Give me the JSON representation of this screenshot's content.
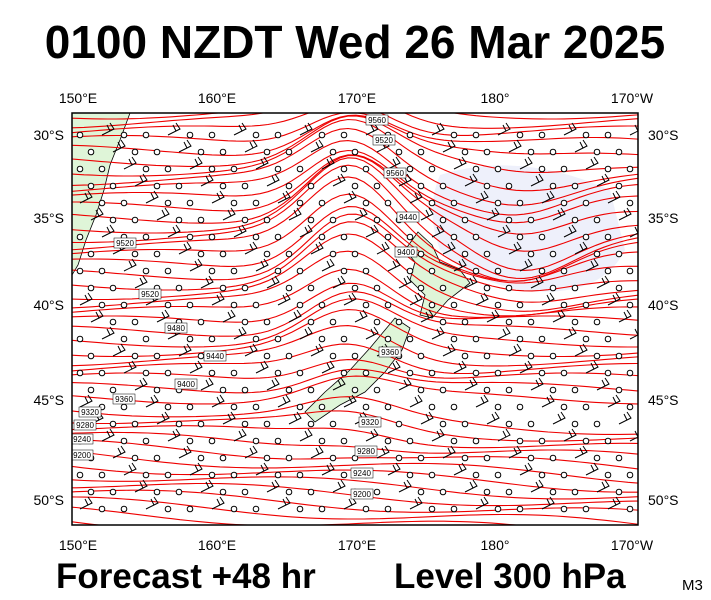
{
  "header": {
    "title": "0100 NZDT Wed 26 Mar 2025"
  },
  "map": {
    "longitude_labels": [
      "150°E",
      "160°E",
      "170°E",
      "180°",
      "170°W"
    ],
    "latitude_labels": [
      "30°S",
      "35°S",
      "40°S",
      "45°S",
      "50°S"
    ],
    "contour_labels": [
      "9560",
      "9520",
      "9560",
      "9440",
      "9400",
      "9520",
      "9520",
      "9480",
      "9440",
      "9400",
      "9360",
      "9320",
      "9280",
      "9240",
      "9200",
      "9360",
      "9320",
      "9280",
      "9240",
      "9200"
    ]
  },
  "footer": {
    "forecast": "Forecast +48 hr",
    "level": "Level 300 hPa",
    "code": "M3"
  }
}
